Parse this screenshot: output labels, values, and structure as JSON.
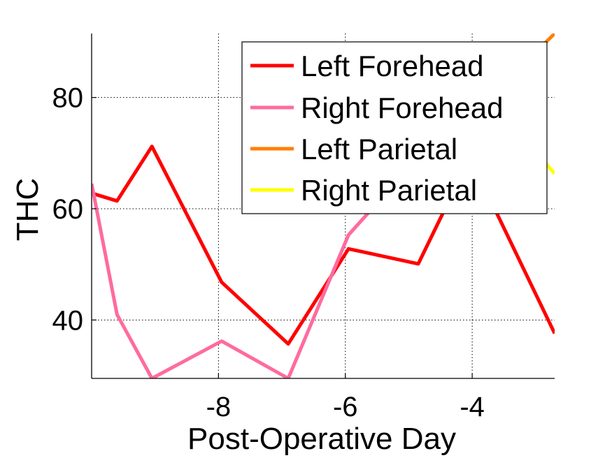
{
  "chart_data": {
    "type": "line",
    "title": "",
    "xlabel": "Post-Operative Day",
    "ylabel": "THC",
    "xlim": [
      -10.0,
      -2.7
    ],
    "ylim": [
      29.5,
      91.5
    ],
    "xticks": [
      -8,
      -6,
      -4
    ],
    "yticks": [
      40,
      60,
      80
    ],
    "grid": true,
    "legend_position": "top-right",
    "series": [
      {
        "name": "Left Forehead",
        "color": "#ff0000",
        "x": [
          -10.0,
          -9.6,
          -9.05,
          -7.95,
          -6.9,
          -5.95,
          -4.85,
          -4.3,
          -3.9,
          -2.7
        ],
        "y": [
          62.8,
          61.4,
          71.2,
          46.8,
          35.7,
          52.8,
          50.1,
          63,
          66,
          37.6
        ]
      },
      {
        "name": "Right Forehead",
        "color": "#ff6b9e",
        "x": [
          -10.0,
          -9.6,
          -9.05,
          -7.95,
          -6.9,
          -5.95,
          -5.5
        ],
        "y": [
          64.5,
          41.0,
          29.5,
          36.2,
          29.5,
          55.3,
          61.0
        ]
      },
      {
        "name": "Left Parietal",
        "color": "#ff7f00",
        "x": [
          -2.85,
          -2.7
        ],
        "y": [
          89.8,
          91.5
        ]
      },
      {
        "name": "Right Parietal",
        "color": "#ffff00",
        "x": [
          -2.85,
          -2.7
        ],
        "y": [
          68.3,
          66.3
        ]
      }
    ]
  }
}
